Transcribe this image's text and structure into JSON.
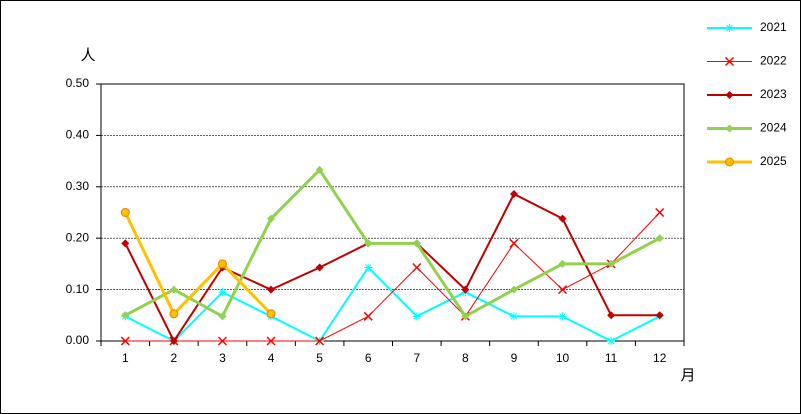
{
  "chart_data": {
    "type": "line",
    "y_label": "人",
    "x_label": "月",
    "categories": [
      "1",
      "2",
      "3",
      "4",
      "5",
      "6",
      "7",
      "8",
      "9",
      "10",
      "11",
      "12"
    ],
    "series": [
      {
        "name": "2021",
        "color": "#00ffff",
        "marker": "star",
        "width": 2,
        "values": [
          0.048,
          0,
          0.095,
          0.048,
          0,
          0.143,
          0.048,
          0.095,
          0.048,
          0.048,
          0,
          0.048
        ]
      },
      {
        "name": "2022",
        "color": "#ff0000",
        "marker": "x",
        "width": 1,
        "values": [
          0,
          0,
          0,
          0,
          0,
          0.048,
          0.143,
          0.048,
          0.19,
          0.1,
          0.15,
          0.25
        ]
      },
      {
        "name": "2023",
        "color": "#c00000",
        "marker": "diamond",
        "width": 2,
        "values": [
          0.19,
          0,
          0.143,
          0.1,
          0.143,
          0.19,
          0.19,
          0.1,
          0.286,
          0.238,
          0.05,
          0.05
        ]
      },
      {
        "name": "2024",
        "color": "#92d050",
        "marker": "diamond",
        "width": 3,
        "values": [
          0.05,
          0.1,
          0.048,
          0.238,
          0.333,
          0.19,
          0.19,
          0.048,
          0.1,
          0.15,
          0.15,
          0.2
        ]
      },
      {
        "name": "2025",
        "color": "#ffc000",
        "marker": "circle",
        "width": 3,
        "values": [
          0.25,
          0.053,
          0.15,
          0.053,
          null,
          null,
          null,
          null,
          null,
          null,
          null,
          null
        ]
      }
    ],
    "ylim": [
      0,
      0.5
    ],
    "yticks": [
      {
        "value": 0,
        "label": "0.00"
      },
      {
        "value": 0.1,
        "label": "0.10"
      },
      {
        "value": 0.2,
        "label": "0.20"
      },
      {
        "value": 0.3,
        "label": "0.30"
      },
      {
        "value": 0.4,
        "label": "0.40"
      },
      {
        "value": 0.5,
        "label": "0.50"
      }
    ],
    "grid": true,
    "legend": "right"
  }
}
